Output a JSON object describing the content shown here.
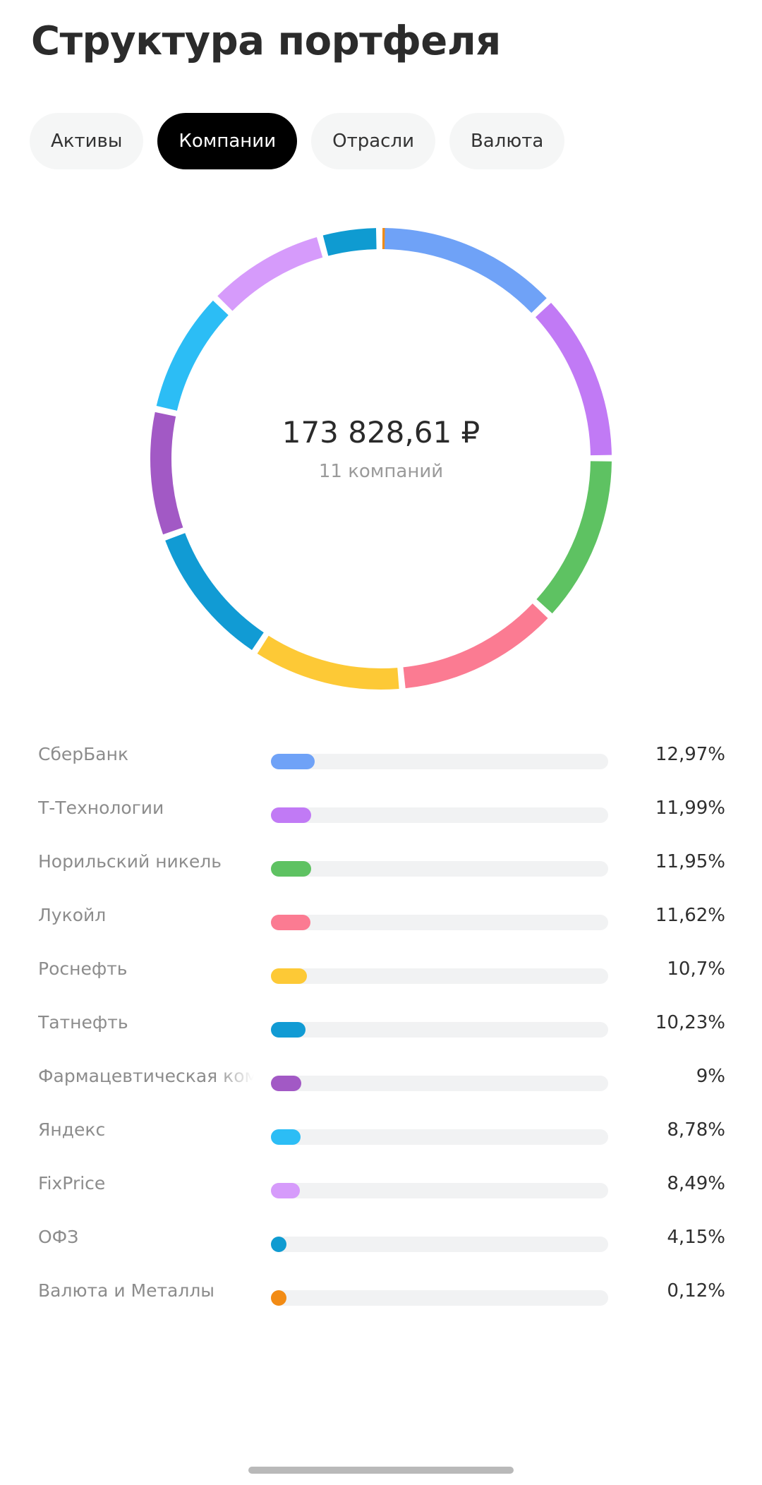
{
  "page": {
    "title": "Структура портфеля"
  },
  "tabs": [
    {
      "label": "Активы",
      "active": false
    },
    {
      "label": "Компании",
      "active": true
    },
    {
      "label": "Отрасли",
      "active": false
    },
    {
      "label": "Валюта",
      "active": false
    }
  ],
  "summary": {
    "total": "173 828,61 ₽",
    "count": "11 компаний"
  },
  "chart_data": {
    "type": "pie",
    "series": [
      {
        "name": "СберБанк",
        "value": 12.97,
        "label": "12,97%",
        "color": "#6fa2f7"
      },
      {
        "name": "Т-Технологии",
        "value": 11.99,
        "label": "11,99%",
        "color": "#c17af5"
      },
      {
        "name": "Норильский никель",
        "value": 11.95,
        "label": "11,95%",
        "color": "#5ec262"
      },
      {
        "name": "Лукойл",
        "value": 11.62,
        "label": "11,62%",
        "color": "#fb7b92"
      },
      {
        "name": "Роснефть",
        "value": 10.7,
        "label": "10,7%",
        "color": "#fdc936"
      },
      {
        "name": "Татнефть",
        "value": 10.23,
        "label": "10,23%",
        "color": "#119bd4"
      },
      {
        "name": "Фармацевтическая компания",
        "value": 9,
        "label": "9%",
        "color": "#a259c5"
      },
      {
        "name": "Яндекс",
        "value": 8.78,
        "label": "8,78%",
        "color": "#2cbdf5"
      },
      {
        "name": "FixPrice",
        "value": 8.49,
        "label": "8,49%",
        "color": "#d69bfb"
      },
      {
        "name": "ОФЗ",
        "value": 4.15,
        "label": "4,15%",
        "color": "#0f9bd1"
      },
      {
        "name": "Валюта и Металлы",
        "value": 0.12,
        "label": "0,12%",
        "color": "#f28b14"
      }
    ]
  }
}
